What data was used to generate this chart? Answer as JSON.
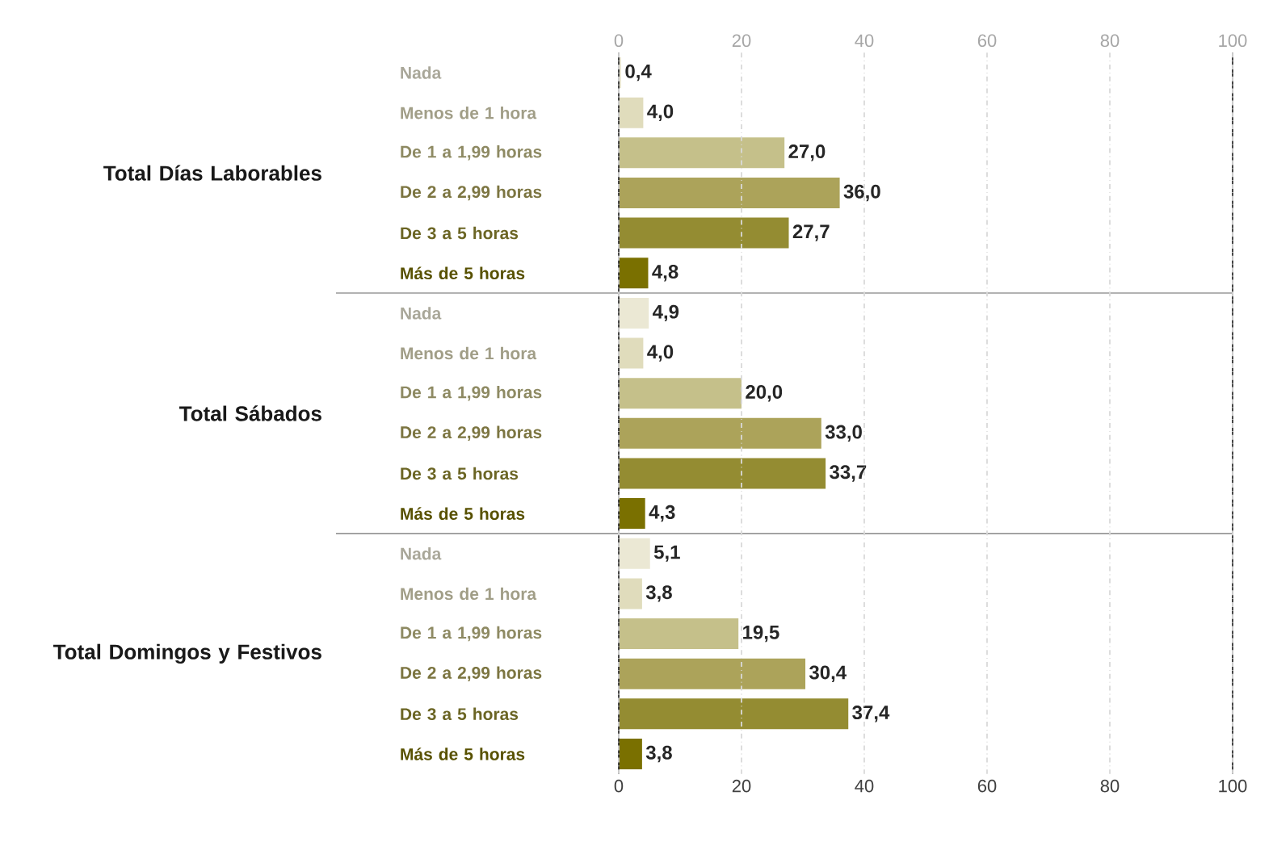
{
  "chart_data": {
    "type": "bar",
    "orientation": "horizontal",
    "categories": [
      "Nada",
      "Menos de 1 hora",
      "De 1 a 1,99 horas",
      "De 2 a 2,99 horas",
      "De 3 a 5 horas",
      "Más de 5 horas",
      "Nada",
      "Menos de 1 hora",
      "De 1 a 1,99 horas",
      "De 2 a 2,99 horas",
      "De 3 a 5 horas",
      "Más de 5 horas",
      "Nada",
      "Menos de 1 hora",
      "De 1 a 1,99 horas",
      "De 2 a 2,99 horas",
      "De 3 a 5 horas",
      "Más de 5 horas"
    ],
    "values": [
      0.4,
      4.0,
      27.0,
      36.0,
      27.7,
      4.8,
      4.9,
      4.0,
      20.0,
      33.0,
      33.7,
      4.3,
      5.1,
      3.8,
      19.5,
      30.4,
      37.4,
      3.8
    ],
    "value_labels": [
      "0,4",
      "4,0",
      "27,0",
      "36,0",
      "27,7",
      "4,8",
      "4,9",
      "4,0",
      "20,0",
      "33,0",
      "33,7",
      "4,3",
      "5,1",
      "3,8",
      "19,5",
      "30,4",
      "37,4",
      "3,8"
    ],
    "colors": [
      "#ebe8d4",
      "#e0dcbc",
      "#c5c08a",
      "#aca35a",
      "#948c32",
      "#7a7000",
      "#ebe8d4",
      "#e0dcbc",
      "#c5c08a",
      "#aca35a",
      "#948c32",
      "#7a7000",
      "#ebe8d4",
      "#e0dcbc",
      "#c5c08a",
      "#aca35a",
      "#948c32",
      "#7a7000"
    ],
    "annotations": [
      "Total Días Laborables",
      "Total Sábados",
      "Total Domingos y Festivos"
    ],
    "xlim": [
      0,
      100
    ],
    "xticks": [
      0,
      20,
      40,
      60,
      80,
      100
    ],
    "x2lim": [
      0,
      100
    ],
    "x2ticks": [
      0,
      20,
      40,
      60,
      80,
      100
    ],
    "grid": "x"
  }
}
